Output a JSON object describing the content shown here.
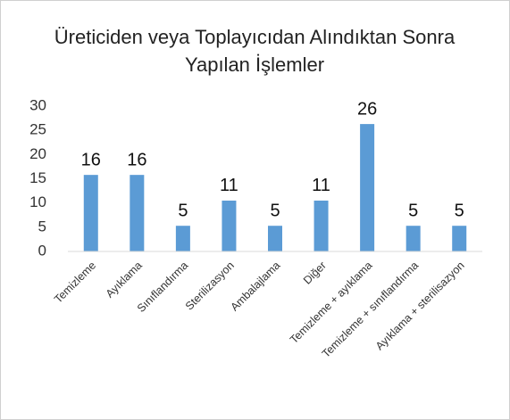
{
  "chart_data": {
    "type": "bar",
    "title": "Üreticiden veya Toplayıcıdan Alındıktan Sonra Yapılan İşlemler",
    "categories": [
      "Temizleme",
      "Ayıklama",
      "Sınıflandırma",
      "Sterilizasyon",
      "Ambalajlama",
      "Diğer",
      "Temizleme + ayıklama",
      "Temizleme + sınıflandırma",
      "Ayıklama + sterilisazyon"
    ],
    "values": [
      15.8,
      15.8,
      5.3,
      10.5,
      5.3,
      10.5,
      26.3,
      5.3,
      5.3
    ],
    "value_labels": [
      "16",
      "16",
      "5",
      "11",
      "5",
      "11",
      "26",
      "5",
      "5"
    ],
    "color": "#5b9bd5",
    "ylim": [
      0,
      30
    ],
    "yticks": [
      0,
      5,
      10,
      15,
      20,
      25,
      30
    ],
    "grid": false
  }
}
